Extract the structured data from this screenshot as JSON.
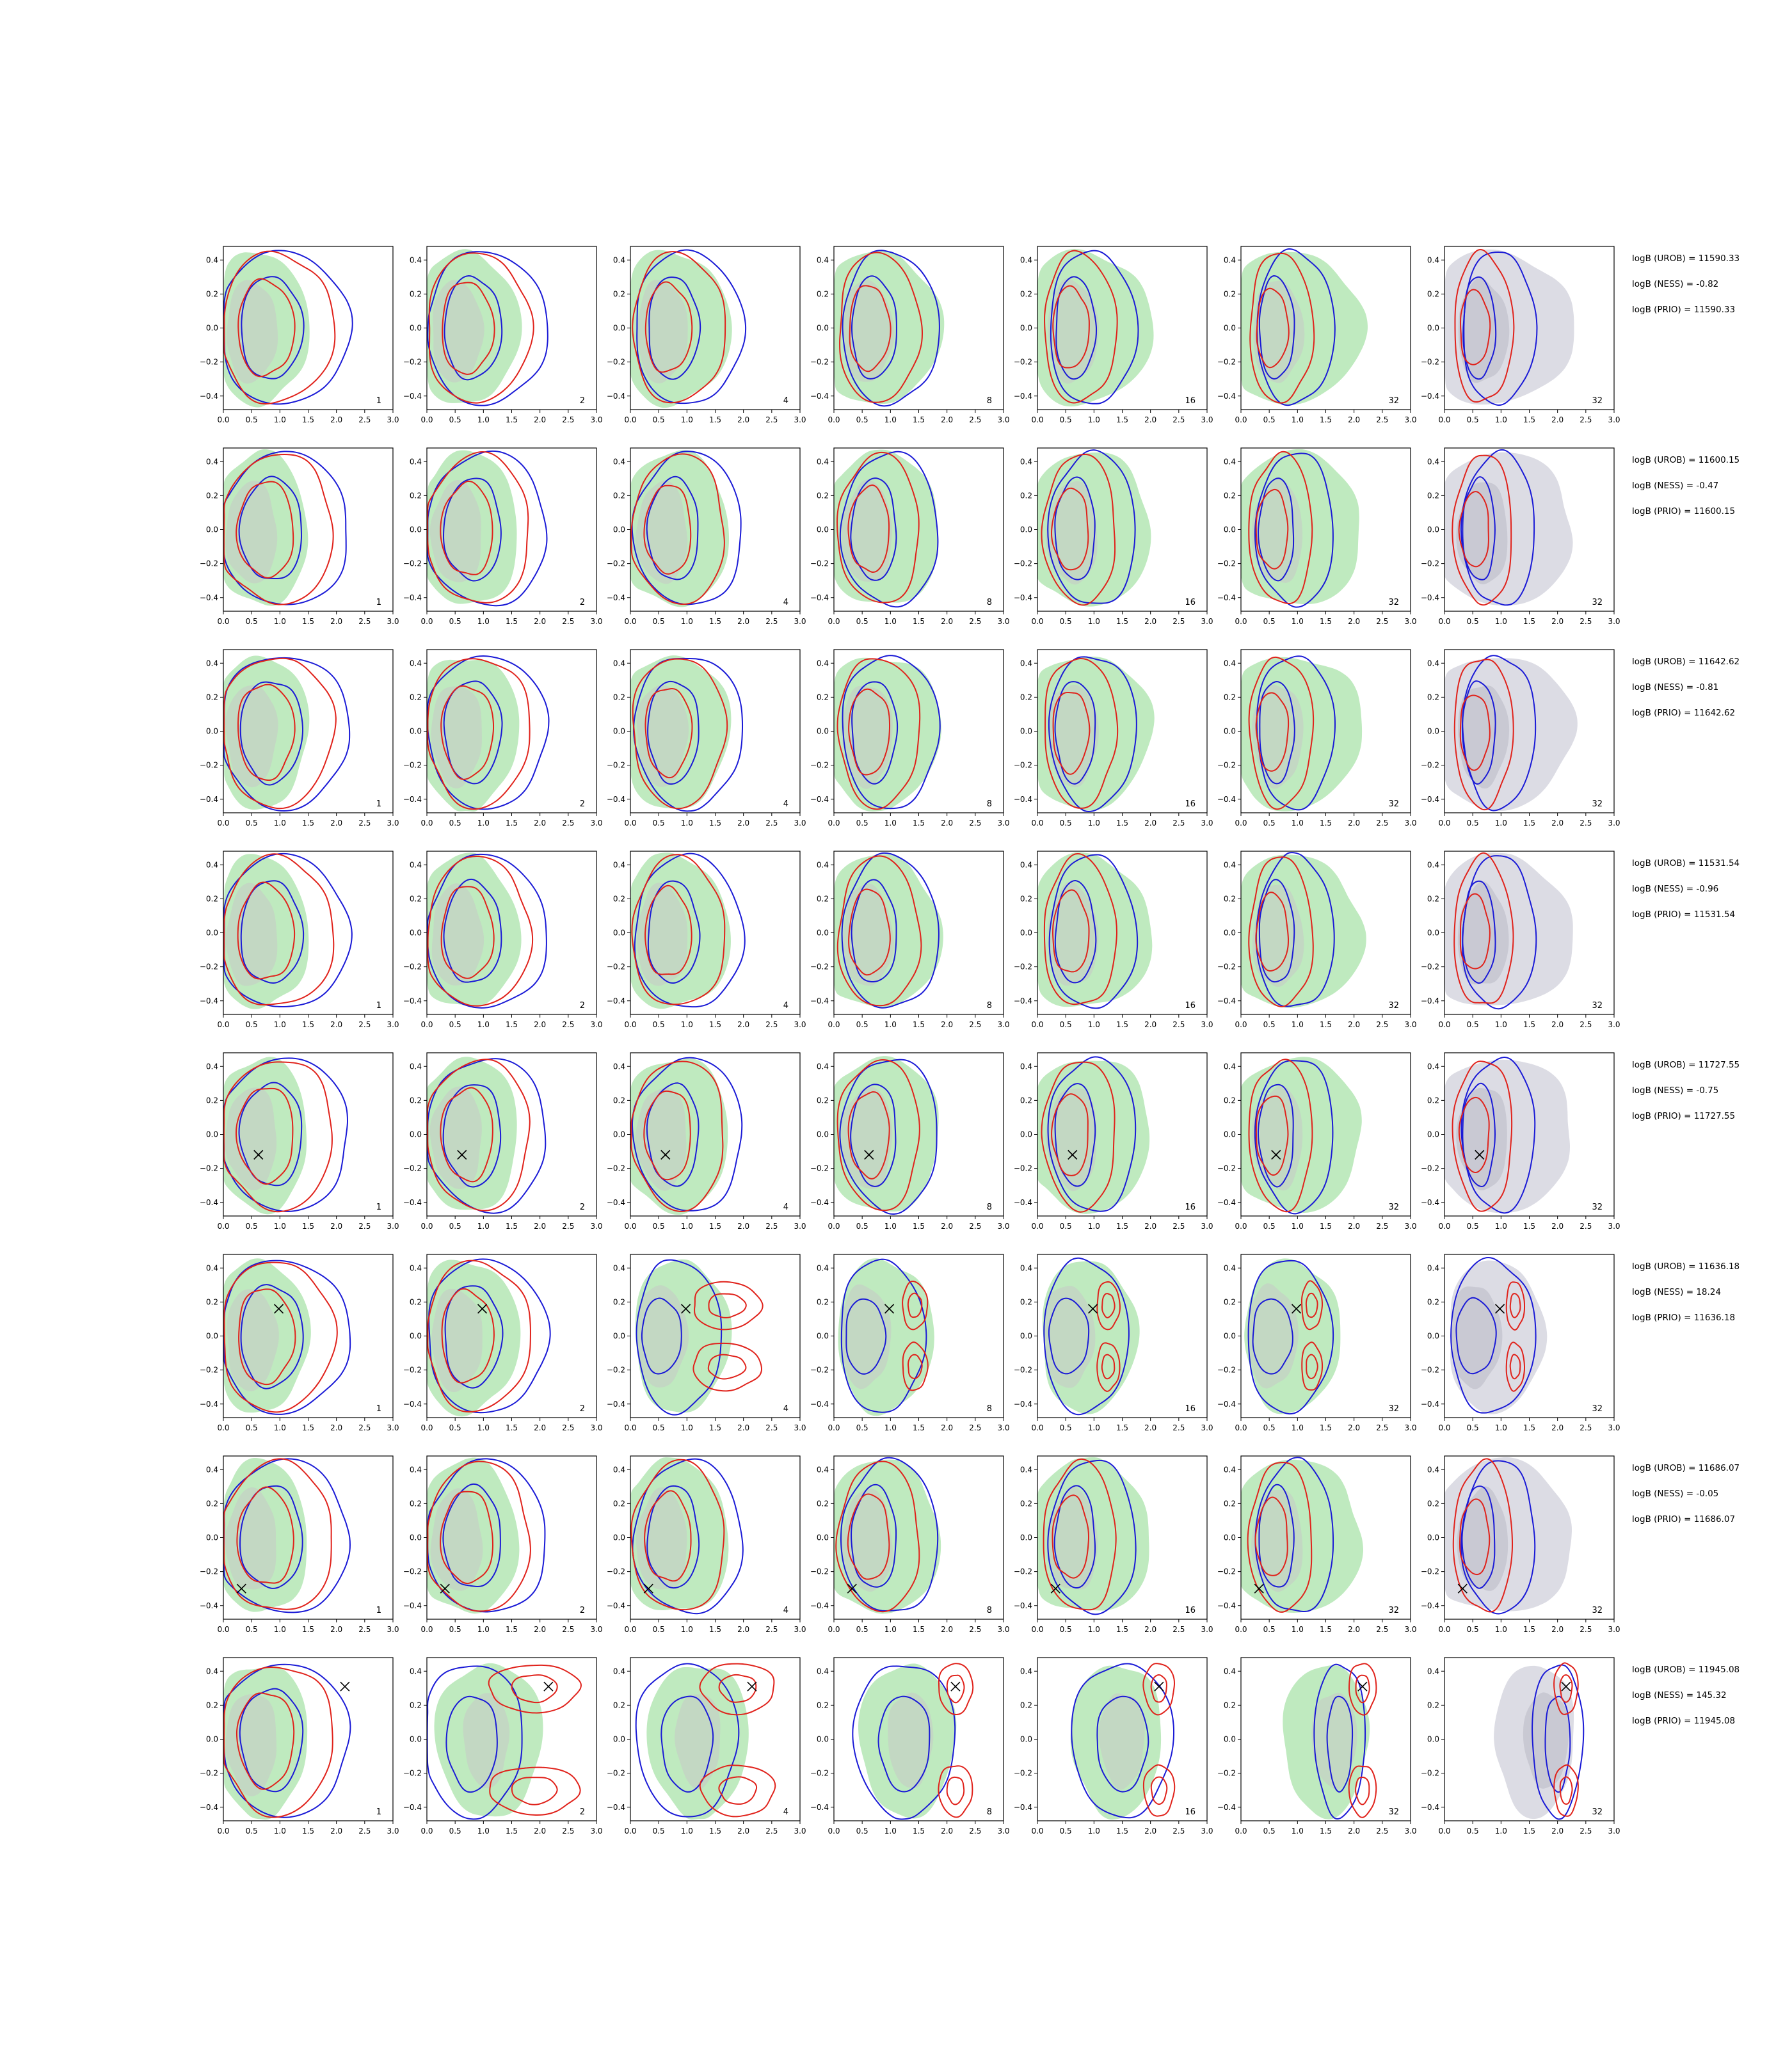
{
  "chart_data": {
    "type": "contour-grid",
    "title": "",
    "xlim": [
      0,
      3.0
    ],
    "ylim": [
      -0.48,
      0.48
    ],
    "x_ticks": [
      "0.0",
      "0.5",
      "1.0",
      "1.5",
      "2.0",
      "2.5",
      "3.0"
    ],
    "y_ticks": [
      "−0.4",
      "−0.2",
      "0.0",
      "0.2",
      "0.4"
    ],
    "x_tick_values": [
      0,
      0.5,
      1.0,
      1.5,
      2.0,
      2.5,
      3.0
    ],
    "y_tick_values": [
      -0.4,
      -0.2,
      0.0,
      0.2,
      0.4
    ],
    "column_labels": [
      "1",
      "2",
      "4",
      "8",
      "16",
      "32",
      "32"
    ],
    "colors": {
      "red": "#e0221b",
      "blue": "#1a1ad6",
      "green_fill": "#bfeabf",
      "grey_fill": "#dcdce4",
      "marker": "#000000"
    },
    "rows": [
      {
        "evidence": [
          "logB (UROB) = 11590.33",
          "logB (NESS) = -0.82",
          "logB (PRIO) = 11590.33"
        ],
        "marker": null,
        "pattern": "uni"
      },
      {
        "evidence": [
          "logB (UROB) = 11600.15",
          "logB (NESS) = -0.47",
          "logB (PRIO) = 11600.15"
        ],
        "marker": null,
        "pattern": "uni"
      },
      {
        "evidence": [
          "logB (UROB) = 11642.62",
          "logB (NESS) = -0.81",
          "logB (PRIO) = 11642.62"
        ],
        "marker": null,
        "pattern": "uni"
      },
      {
        "evidence": [
          "logB (UROB) = 11531.54",
          "logB (NESS) = -0.96",
          "logB (PRIO) = 11531.54"
        ],
        "marker": null,
        "pattern": "uni"
      },
      {
        "evidence": [
          "logB (UROB) = 11727.55",
          "logB (NESS) = -0.75",
          "logB (PRIO) = 11727.55"
        ],
        "marker": [
          0.62,
          -0.12
        ],
        "pattern": "uni"
      },
      {
        "evidence": [
          "logB (UROB) = 11636.18",
          "logB (NESS) = 18.24",
          "logB (PRIO) = 11636.18"
        ],
        "marker": [
          0.98,
          0.16
        ],
        "pattern": "bi-near"
      },
      {
        "evidence": [
          "logB (UROB) = 11686.07",
          "logB (NESS) = -0.05",
          "logB (PRIO) = 11686.07"
        ],
        "marker": [
          0.32,
          -0.3
        ],
        "pattern": "uni"
      },
      {
        "evidence": [
          "logB (UROB) = 11945.08",
          "logB (NESS) = 145.32",
          "logB (PRIO) = 11945.08"
        ],
        "marker": [
          2.15,
          0.31
        ],
        "pattern": "bi-far"
      }
    ]
  }
}
